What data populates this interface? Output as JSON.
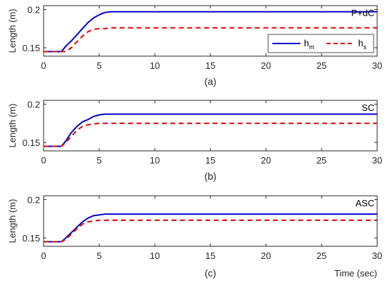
{
  "colors": {
    "h_m": "#0000CC",
    "h_s": "#E00000",
    "axis": "#262626",
    "background": "#ffffff"
  },
  "legend": {
    "placement": "top-right of panel (a)",
    "entries": [
      {
        "base": "h",
        "sub": "m"
      },
      {
        "base": "h",
        "sub": "s"
      }
    ]
  },
  "chart_data": [
    {
      "type": "line",
      "caption": "(a)",
      "annotation": "P+dC",
      "xlabel": "",
      "ylabel": "Length (m)",
      "xlim": [
        0,
        30
      ],
      "ylim": [
        0.139,
        0.205
      ],
      "xticks": [
        0,
        5,
        10,
        15,
        20,
        25,
        30
      ],
      "yticks": [
        0.15,
        0.2
      ],
      "ytick_labels": [
        "0.15",
        "0.2"
      ],
      "grid": false,
      "series": [
        {
          "name": "h_m",
          "style": "solid",
          "x": [
            0,
            1.6,
            2.0,
            2.5,
            3.0,
            3.5,
            4.0,
            4.5,
            5.0,
            5.5,
            6.0,
            30
          ],
          "y": [
            0.145,
            0.145,
            0.152,
            0.159,
            0.167,
            0.175,
            0.183,
            0.189,
            0.193,
            0.196,
            0.197,
            0.197
          ]
        },
        {
          "name": "h_s",
          "style": "dashed",
          "x": [
            0,
            2.0,
            2.5,
            3.0,
            3.5,
            4.0,
            4.5,
            5.0,
            5.5,
            6.0,
            30
          ],
          "y": [
            0.145,
            0.145,
            0.15,
            0.158,
            0.165,
            0.171,
            0.174,
            0.175,
            0.175,
            0.176,
            0.176
          ]
        }
      ]
    },
    {
      "type": "line",
      "caption": "(b)",
      "annotation": "SC",
      "xlabel": "",
      "ylabel": "Length (m)",
      "xlim": [
        0,
        30
      ],
      "ylim": [
        0.139,
        0.205
      ],
      "xticks": [
        0,
        5,
        10,
        15,
        20,
        25,
        30
      ],
      "yticks": [
        0.15,
        0.2
      ],
      "ytick_labels": [
        "0.15",
        "0.2"
      ],
      "grid": false,
      "series": [
        {
          "name": "h_m",
          "style": "solid",
          "x": [
            0,
            1.6,
            2.0,
            2.5,
            3.0,
            3.5,
            4.0,
            4.5,
            5.0,
            5.5,
            6.0,
            30
          ],
          "y": [
            0.145,
            0.145,
            0.152,
            0.163,
            0.171,
            0.177,
            0.18,
            0.184,
            0.186,
            0.187,
            0.187,
            0.187
          ]
        },
        {
          "name": "h_s",
          "style": "dashed",
          "x": [
            0,
            1.6,
            2.0,
            2.5,
            3.0,
            3.5,
            4.0,
            4.5,
            5.0,
            5.5,
            6.0,
            30
          ],
          "y": [
            0.145,
            0.145,
            0.15,
            0.158,
            0.166,
            0.171,
            0.173,
            0.174,
            0.175,
            0.175,
            0.175,
            0.175
          ]
        }
      ]
    },
    {
      "type": "line",
      "caption": "(c)",
      "annotation": "ASC",
      "xlabel": "Time (sec)",
      "ylabel": "Length (m)",
      "xlim": [
        0,
        30
      ],
      "ylim": [
        0.139,
        0.205
      ],
      "xticks": [
        0,
        5,
        10,
        15,
        20,
        25,
        30
      ],
      "yticks": [
        0.15,
        0.2
      ],
      "ytick_labels": [
        "0.15",
        "0.2"
      ],
      "grid": false,
      "series": [
        {
          "name": "h_m",
          "style": "solid",
          "x": [
            0,
            1.6,
            2.0,
            2.5,
            3.0,
            3.5,
            4.0,
            4.5,
            5.0,
            5.5,
            6.0,
            30
          ],
          "y": [
            0.145,
            0.145,
            0.15,
            0.157,
            0.164,
            0.171,
            0.176,
            0.179,
            0.18,
            0.181,
            0.181,
            0.181
          ]
        },
        {
          "name": "h_s",
          "style": "dashed",
          "x": [
            0,
            1.6,
            2.0,
            2.5,
            3.0,
            3.5,
            4.0,
            4.5,
            5.0,
            5.5,
            30
          ],
          "y": [
            0.145,
            0.145,
            0.148,
            0.155,
            0.162,
            0.168,
            0.171,
            0.172,
            0.173,
            0.173,
            0.173
          ]
        }
      ]
    }
  ]
}
